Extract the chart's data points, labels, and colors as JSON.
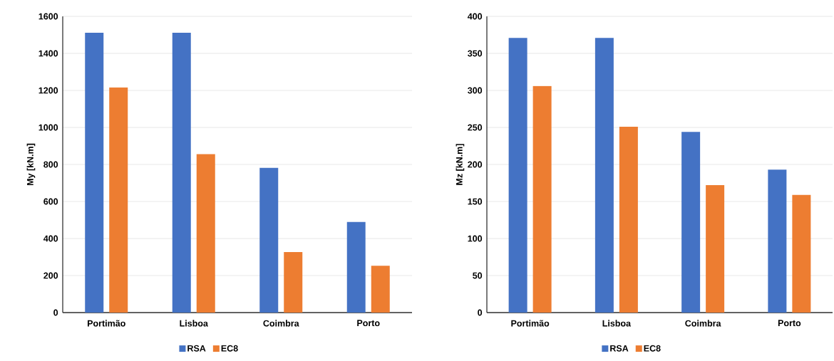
{
  "chart_data": [
    {
      "type": "bar",
      "ylabel": "My [kN.m]",
      "categories": [
        "Portimão",
        "Lisboa",
        "Coimbra",
        "Porto"
      ],
      "series": [
        {
          "name": "RSA",
          "color": "#4472c4",
          "values": [
            1512,
            1512,
            782,
            489
          ]
        },
        {
          "name": "EC8",
          "color": "#ed7d31",
          "values": [
            1216,
            856,
            327,
            253
          ]
        }
      ],
      "ylim": [
        0,
        1600
      ],
      "yticks": [
        0,
        200,
        400,
        600,
        800,
        1000,
        1200,
        1400,
        1600
      ],
      "grid": "y",
      "legend": "bottom"
    },
    {
      "type": "bar",
      "ylabel": "Mz [kN.m]",
      "categories": [
        "Portimão",
        "Lisboa",
        "Coimbra",
        "Porto"
      ],
      "series": [
        {
          "name": "RSA",
          "color": "#4472c4",
          "values": [
            371,
            371,
            244,
            193
          ]
        },
        {
          "name": "EC8",
          "color": "#ed7d31",
          "values": [
            306,
            251,
            172,
            159
          ]
        }
      ],
      "ylim": [
        0,
        400
      ],
      "yticks": [
        0,
        50,
        100,
        150,
        200,
        250,
        300,
        350,
        400
      ],
      "grid": "y",
      "legend": "bottom"
    }
  ]
}
